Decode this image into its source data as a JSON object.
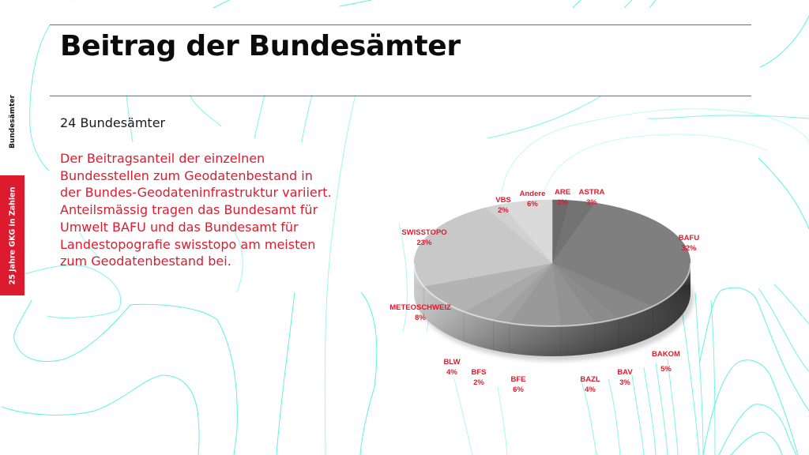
{
  "slide": {
    "title": "Beitrag der Bundesämter",
    "side_label": "Bundesämter",
    "side_tab": "25 Jahre GKG in Zahlen",
    "subtitle": "24 Bundesämter",
    "body": "Der Beitragsanteil der einzelnen\nBundesstellen zum Geodatenbestand in\nder Bundes-Geodateninfrastruktur variiert.\nAnteilsmässig tragen das Bundesamt für\nUmwelt BAFU und das Bundesamt für\nLandestopografie swisstopo am meisten\nzum Geodatenbestand bei."
  },
  "colors": {
    "accent_red": "#dc1c2e",
    "contour_cyan": "#5ef2e2",
    "rule_gray": "#6f6f6f"
  },
  "chart_data": {
    "type": "pie",
    "style": "3d",
    "title": "",
    "start_angle": "12 o'clock, clockwise",
    "categories": [
      "ARE",
      "ASTRA",
      "BAFU",
      "BAKOM",
      "BAV",
      "BAZL",
      "BFE",
      "BFS",
      "BLW",
      "METEOSCHWEIZ",
      "SWISSTOPO",
      "VBS",
      "Andere"
    ],
    "values": [
      2,
      3,
      32,
      5,
      3,
      4,
      6,
      2,
      4,
      8,
      23,
      2,
      6
    ],
    "value_labels": [
      "2%",
      "3%",
      "32%",
      "5%",
      "3%",
      "4%",
      "6%",
      "2%",
      "4%",
      "8%",
      "23%",
      "2%",
      "6%"
    ],
    "slice_colors": [
      "#6b6b6b",
      "#737373",
      "#7f7f7f",
      "#878787",
      "#8c8c8c",
      "#929292",
      "#999999",
      "#a1a1a1",
      "#a8a8a8",
      "#b3b3b3",
      "#c8c8c8",
      "#d1d1d1",
      "#dadada"
    ],
    "legend": "none (data labels outside)",
    "label_color": "#dc1c2e"
  }
}
